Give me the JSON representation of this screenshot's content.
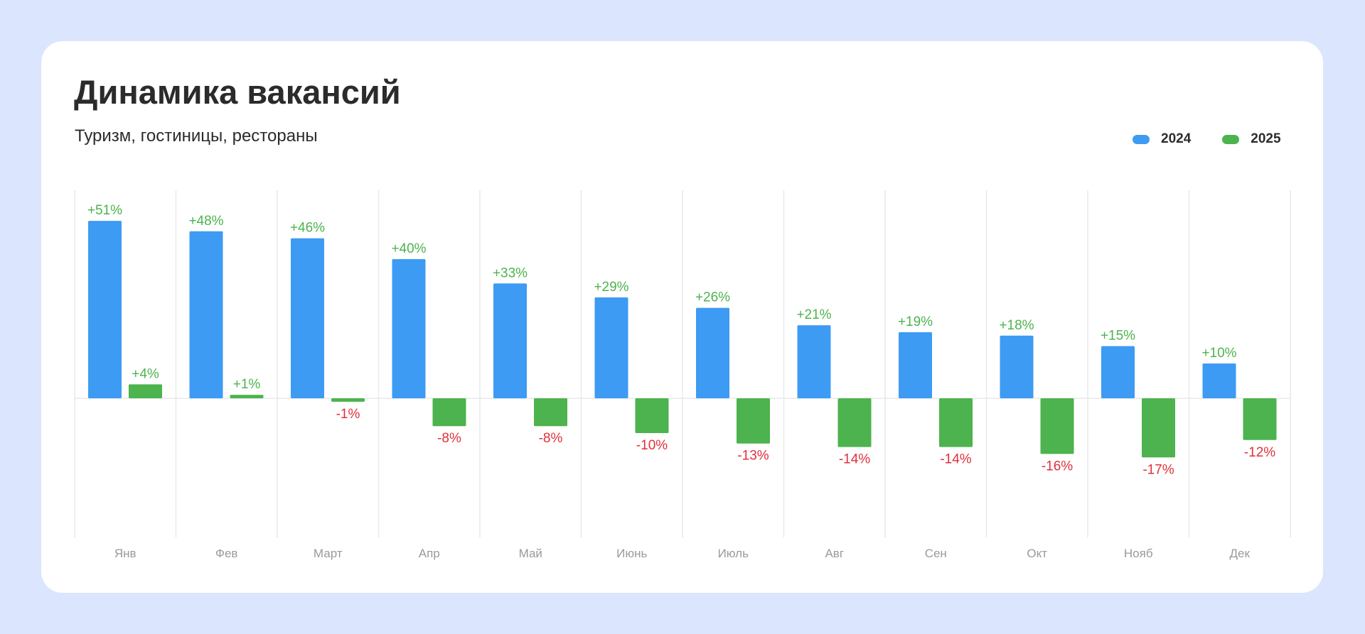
{
  "chart_data": {
    "type": "bar",
    "title": "Динамика вакансий",
    "subtitle": "Туризм, гостиницы, рестораны",
    "xlabel": "",
    "ylabel": "",
    "grid": "vertical",
    "legend_position": "top-right",
    "categories": [
      "Янв",
      "Фев",
      "Март",
      "Апр",
      "Май",
      "Июнь",
      "Июль",
      "Авг",
      "Сен",
      "Окт",
      "Нояб",
      "Дек"
    ],
    "series": [
      {
        "name": "2024",
        "color": "#3d9bf3",
        "values": [
          51,
          48,
          46,
          40,
          33,
          29,
          26,
          21,
          19,
          18,
          15,
          10
        ],
        "labels": [
          "+51%",
          "+48%",
          "+46%",
          "+40%",
          "+33%",
          "+29%",
          "+26%",
          "+21%",
          "+19%",
          "+18%",
          "+15%",
          "+10%"
        ]
      },
      {
        "name": "2025",
        "color": "#4cb34e",
        "values": [
          4,
          1,
          -1,
          -8,
          -8,
          -10,
          -13,
          -14,
          -14,
          -16,
          -17,
          -12
        ],
        "labels": [
          "+4%",
          "+1%",
          "-1%",
          "-8%",
          "-8%",
          "-10%",
          "-13%",
          "-14%",
          "-14%",
          "-16%",
          "-17%",
          "-12%"
        ]
      }
    ],
    "label_colors": {
      "positive": "#4cb34e",
      "negative": "#e0303a"
    }
  }
}
